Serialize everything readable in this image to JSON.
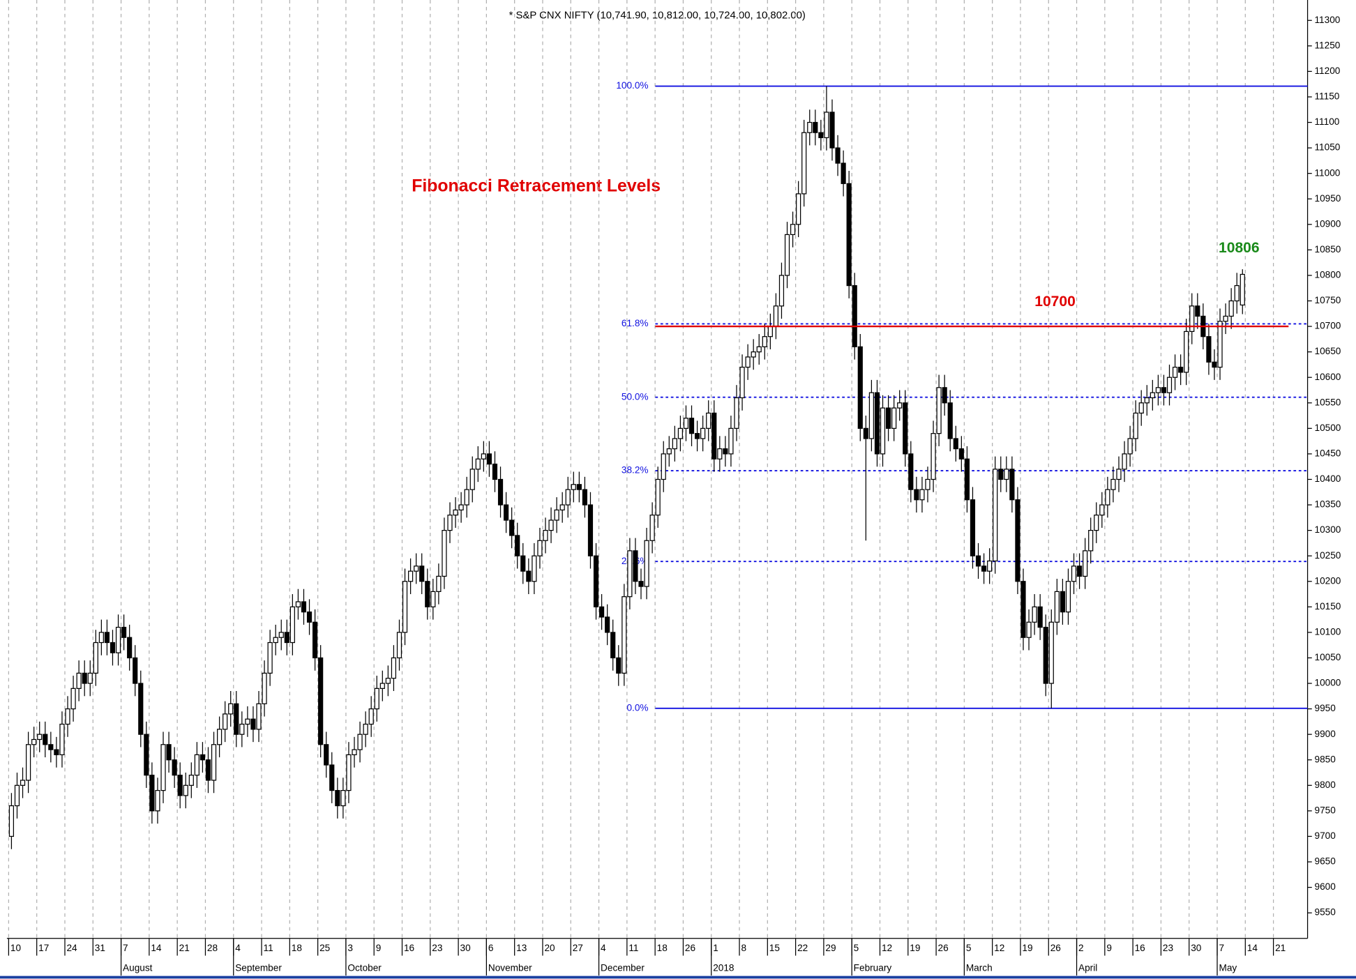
{
  "chart_data": {
    "type": "candlestick",
    "title": "* S&P CNX NIFTY (10,741.90, 10,812.00, 10,724.00, 10,802.00)",
    "subtitle": "Fibonacci  Retracement Levels",
    "ylim": [
      9500,
      11340
    ],
    "yticks": [
      9550,
      9600,
      9650,
      9700,
      9750,
      9800,
      9850,
      9900,
      9950,
      10000,
      10050,
      10100,
      10150,
      10200,
      10250,
      10300,
      10350,
      10400,
      10450,
      10500,
      10550,
      10600,
      10650,
      10700,
      10750,
      10800,
      10850,
      10900,
      10950,
      11000,
      11050,
      11100,
      11150,
      11200,
      11250,
      11300
    ],
    "xticks": [
      "10",
      "17",
      "24",
      "31",
      "7",
      "14",
      "21",
      "28",
      "4",
      "11",
      "18",
      "25",
      "3",
      "9",
      "16",
      "23",
      "30",
      "6",
      "13",
      "20",
      "27",
      "4",
      "11",
      "18",
      "26",
      "1",
      "8",
      "15",
      "22",
      "29",
      "5",
      "12",
      "19",
      "26",
      "5",
      "12",
      "19",
      "26",
      "2",
      "9",
      "16",
      "23",
      "30",
      "7",
      "14",
      "21"
    ],
    "months": [
      "August",
      "September",
      "October",
      "November",
      "December",
      "2018",
      "February",
      "March",
      "April",
      "May"
    ],
    "levels": [
      {
        "label": "100.0%",
        "value": 11171,
        "style": "solid"
      },
      {
        "label": "61.8%",
        "value": 10705,
        "style": "dashed"
      },
      {
        "label": "50.0%",
        "value": 10561,
        "style": "dashed"
      },
      {
        "label": "38.2%",
        "value": 10417,
        "style": "dashed"
      },
      {
        "label": "23.6%",
        "value": 10239,
        "style": "dashed"
      },
      {
        "label": "0.0%",
        "value": 9951,
        "style": "solid"
      }
    ],
    "resistance": {
      "label": "10700",
      "value": 10700,
      "color": "#e00000"
    },
    "last_high": {
      "label": "10806",
      "color": "#1a8a1a"
    },
    "up_color": "#ffffff",
    "down_color": "#000000",
    "level_color": "#1010e0",
    "open": [
      9700,
      9760,
      9800,
      9810,
      9880,
      9890,
      9900,
      9880,
      9870,
      9860,
      9920,
      9950,
      9990,
      10020,
      10000,
      10020,
      10080,
      10100,
      10080,
      10060,
      10110,
      10090,
      10050,
      10000,
      9900,
      9820,
      9750,
      9790,
      9880,
      9850,
      9820,
      9780,
      9800,
      9820,
      9860,
      9850,
      9810,
      9880,
      9910,
      9940,
      9960,
      9900,
      9920,
      9930,
      9910,
      9960,
      10020,
      10080,
      10090,
      10100,
      10080,
      10150,
      10160,
      10140,
      10120,
      10050,
      9880,
      9840,
      9790,
      9760,
      9790,
      9860,
      9870,
      9900,
      9920,
      9950,
      9990,
      10000,
      10010,
      10050,
      10100,
      10200,
      10220,
      10230,
      10200,
      10150,
      10180,
      10210,
      10300,
      10330,
      10340,
      10350,
      10380,
      10420,
      10440,
      10450,
      10430,
      10400,
      10350,
      10320,
      10290,
      10250,
      10220,
      10200,
      10250,
      10280,
      10300,
      10320,
      10340,
      10350,
      10380,
      10390,
      10380,
      10350,
      10250,
      10150,
      10130,
      10100,
      10050,
      10020,
      10170,
      10260,
      10200,
      10190,
      10280,
      10330,
      10400,
      10450,
      10460,
      10480,
      10500,
      10520,
      10490,
      10480,
      10500,
      10530,
      10440,
      10460,
      10450,
      10500,
      10560,
      10620,
      10640,
      10650,
      10660,
      10680,
      10700,
      10740,
      10800,
      10880,
      10900,
      10960,
      11080,
      11100,
      11080,
      11070,
      11120,
      11050,
      11020,
      10980,
      10780,
      10660,
      10500,
      10480,
      10570,
      10450,
      10540,
      10500,
      10540,
      10550,
      10450,
      10380,
      10360,
      10380,
      10400,
      10490,
      10580,
      10550,
      10480,
      10460,
      10440,
      10360,
      10250,
      10230,
      10220,
      10240,
      10420,
      10400,
      10420,
      10360,
      10200,
      10090,
      10120,
      10150,
      10110,
      10000,
      10120,
      10180,
      10140,
      10200,
      10230,
      10210,
      10260,
      10300,
      10330,
      10350,
      10380,
      10400,
      10420,
      10450,
      10480,
      10530,
      10550,
      10560,
      10570,
      10580,
      10570,
      10600,
      10620,
      10610,
      10690,
      10740,
      10720,
      10680,
      10630,
      10620,
      10710,
      10720,
      10750,
      10741.9
    ],
    "high": [
      9785,
      9825,
      9835,
      9905,
      9915,
      9925,
      9925,
      9905,
      9895,
      9945,
      9975,
      10015,
      10045,
      10045,
      10045,
      10105,
      10125,
      10125,
      10105,
      10135,
      10135,
      10115,
      10075,
      10025,
      9925,
      9845,
      9815,
      9905,
      9905,
      9875,
      9845,
      9825,
      9845,
      9885,
      9885,
      9875,
      9905,
      9935,
      9965,
      9985,
      9985,
      9945,
      9955,
      9955,
      9985,
      10045,
      10105,
      10115,
      10125,
      10125,
      10175,
      10185,
      10185,
      10165,
      10145,
      10075,
      9905,
      9865,
      9815,
      9815,
      9885,
      9895,
      9925,
      9945,
      9975,
      10015,
      10025,
      10035,
      10075,
      10125,
      10225,
      10245,
      10255,
      10255,
      10225,
      10205,
      10235,
      10325,
      10355,
      10365,
      10375,
      10405,
      10445,
      10465,
      10475,
      10475,
      10455,
      10425,
      10375,
      10345,
      10315,
      10275,
      10245,
      10275,
      10305,
      10325,
      10345,
      10365,
      10375,
      10405,
      10415,
      10415,
      10405,
      10375,
      10275,
      10175,
      10155,
      10125,
      10075,
      10195,
      10285,
      10285,
      10225,
      10305,
      10355,
      10425,
      10475,
      10485,
      10505,
      10525,
      10545,
      10545,
      10515,
      10525,
      10555,
      10555,
      10485,
      10485,
      10525,
      10585,
      10645,
      10665,
      10675,
      10685,
      10705,
      10725,
      10765,
      10825,
      10905,
      10925,
      10985,
      11105,
      11125,
      11125,
      11105,
      11171,
      11145,
      11075,
      11045,
      11005,
      10805,
      10685,
      10525,
      10595,
      10595,
      10565,
      10565,
      10565,
      10575,
      10575,
      10475,
      10405,
      10405,
      10425,
      10515,
      10605,
      10605,
      10575,
      10505,
      10485,
      10465,
      10385,
      10275,
      10255,
      10265,
      10445,
      10445,
      10445,
      10445,
      10385,
      10225,
      10145,
      10175,
      10175,
      10135,
      10145,
      10205,
      10205,
      10225,
      10255,
      10255,
      10285,
      10325,
      10355,
      10375,
      10405,
      10425,
      10445,
      10475,
      10505,
      10555,
      10575,
      10585,
      10595,
      10605,
      10605,
      10625,
      10645,
      10645,
      10715,
      10765,
      10765,
      10745,
      10705,
      10655,
      10735,
      10745,
      10775,
      10805,
      10812
    ],
    "low": [
      9675,
      9735,
      9775,
      9785,
      9855,
      9865,
      9855,
      9845,
      9835,
      9835,
      9895,
      9925,
      9965,
      9975,
      9975,
      9995,
      10055,
      10055,
      10035,
      10035,
      10065,
      10025,
      9975,
      9875,
      9795,
      9725,
      9725,
      9765,
      9825,
      9795,
      9755,
      9755,
      9775,
      9795,
      9825,
      9785,
      9785,
      9855,
      9885,
      9915,
      9875,
      9875,
      9895,
      9885,
      9885,
      9935,
      9995,
      10055,
      10065,
      10055,
      10055,
      10125,
      10115,
      10095,
      10025,
      9855,
      9815,
      9765,
      9735,
      9735,
      9765,
      9835,
      9845,
      9875,
      9895,
      9925,
      9965,
      9975,
      9985,
      10025,
      10075,
      10175,
      10195,
      10175,
      10125,
      10125,
      10155,
      10185,
      10275,
      10305,
      10315,
      10325,
      10355,
      10395,
      10415,
      10405,
      10375,
      10325,
      10295,
      10265,
      10225,
      10195,
      10175,
      10175,
      10225,
      10255,
      10275,
      10295,
      10315,
      10325,
      10355,
      10355,
      10325,
      10225,
      10125,
      10105,
      10075,
      10025,
      9995,
      9995,
      10145,
      10175,
      10165,
      10165,
      10255,
      10305,
      10375,
      10425,
      10435,
      10455,
      10475,
      10465,
      10455,
      10455,
      10475,
      10415,
      10415,
      10425,
      10425,
      10475,
      10535,
      10595,
      10615,
      10625,
      10635,
      10655,
      10675,
      10715,
      10775,
      10855,
      10875,
      10935,
      11055,
      11055,
      11045,
      11045,
      11025,
      10995,
      10955,
      10755,
      10635,
      10475,
      10280,
      10455,
      10425,
      10425,
      10475,
      10475,
      10515,
      10425,
      10355,
      10335,
      10335,
      10355,
      10375,
      10465,
      10525,
      10455,
      10435,
      10415,
      10335,
      10225,
      10205,
      10195,
      10195,
      10215,
      10375,
      10375,
      10335,
      10175,
      10065,
      10065,
      10095,
      10085,
      9975,
      9951,
      10095,
      10115,
      10115,
      10175,
      10185,
      10185,
      10235,
      10275,
      10305,
      10325,
      10355,
      10375,
      10395,
      10425,
      10455,
      10505,
      10525,
      10535,
      10545,
      10545,
      10545,
      10575,
      10585,
      10585,
      10665,
      10695,
      10655,
      10605,
      10595,
      10595,
      10685,
      10695,
      10725,
      10724
    ],
    "close": [
      9760,
      9800,
      9810,
      9880,
      9890,
      9900,
      9880,
      9870,
      9860,
      9920,
      9950,
      9990,
      10020,
      10000,
      10020,
      10080,
      10100,
      10080,
      10060,
      10110,
      10090,
      10050,
      10000,
      9900,
      9820,
      9750,
      9790,
      9880,
      9850,
      9820,
      9780,
      9800,
      9820,
      9860,
      9850,
      9810,
      9880,
      9910,
      9940,
      9960,
      9900,
      9920,
      9930,
      9910,
      9960,
      10020,
      10080,
      10090,
      10100,
      10080,
      10150,
      10160,
      10140,
      10120,
      10050,
      9880,
      9840,
      9790,
      9760,
      9790,
      9860,
      9870,
      9900,
      9920,
      9950,
      9990,
      10000,
      10010,
      10050,
      10100,
      10200,
      10220,
      10230,
      10200,
      10150,
      10180,
      10210,
      10300,
      10330,
      10340,
      10350,
      10380,
      10420,
      10440,
      10450,
      10430,
      10400,
      10350,
      10320,
      10290,
      10250,
      10220,
      10200,
      10250,
      10280,
      10300,
      10320,
      10340,
      10350,
      10380,
      10390,
      10380,
      10350,
      10250,
      10150,
      10130,
      10100,
      10050,
      10020,
      10170,
      10260,
      10200,
      10190,
      10280,
      10330,
      10400,
      10450,
      10460,
      10480,
      10500,
      10520,
      10490,
      10480,
      10500,
      10530,
      10440,
      10460,
      10450,
      10500,
      10560,
      10620,
      10640,
      10650,
      10660,
      10680,
      10700,
      10740,
      10800,
      10880,
      10900,
      10960,
      11080,
      11100,
      11080,
      11070,
      11120,
      11050,
      11020,
      10980,
      10780,
      10660,
      10500,
      10480,
      10570,
      10450,
      10540,
      10500,
      10540,
      10550,
      10450,
      10380,
      10360,
      10380,
      10400,
      10490,
      10580,
      10550,
      10480,
      10460,
      10440,
      10360,
      10250,
      10230,
      10220,
      10240,
      10420,
      10400,
      10420,
      10360,
      10200,
      10090,
      10120,
      10150,
      10110,
      10000,
      10120,
      10180,
      10140,
      10200,
      10230,
      10210,
      10260,
      10300,
      10330,
      10350,
      10380,
      10400,
      10420,
      10450,
      10480,
      10530,
      10550,
      10560,
      10570,
      10580,
      10570,
      10600,
      10620,
      10610,
      10690,
      10740,
      10720,
      10680,
      10630,
      10620,
      10710,
      10720,
      10750,
      10780,
      10802
    ]
  }
}
